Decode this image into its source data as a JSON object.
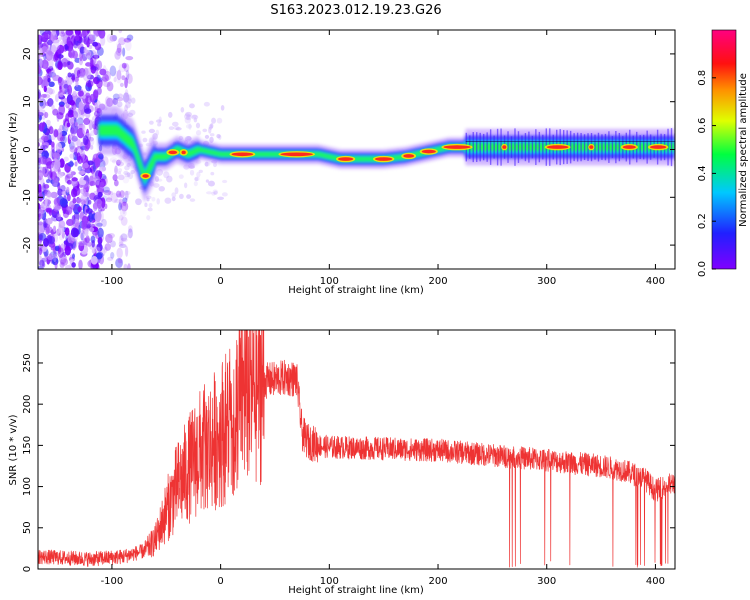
{
  "title": "S163.2023.012.19.23.G26",
  "colors": {
    "snr_line": "#ee3333"
  },
  "chart_data": [
    {
      "type": "heatmap",
      "xlabel": "Height of straight line (km)",
      "ylabel": "Frequency (Hz)",
      "xlim": [
        -168,
        418
      ],
      "ylim": [
        -25,
        25
      ],
      "x_ticks": [
        -100,
        0,
        100,
        200,
        300,
        400
      ],
      "y_ticks": [
        -20,
        -10,
        0,
        10,
        20
      ],
      "colorbar": {
        "label": "Normalized spectral amplitude",
        "range": [
          0,
          1
        ],
        "ticks": [
          "0.0",
          "0.2",
          "0.4",
          "0.6",
          "0.8"
        ],
        "colormap": "rainbow (violet → blue → cyan → green → yellow → red → pink)"
      },
      "ridge_frequency": {
        "x": [
          -110,
          -95,
          -80,
          -70,
          -60,
          -50,
          -40,
          -30,
          -20,
          0,
          50,
          90,
          110,
          130,
          150,
          170,
          190,
          210,
          240,
          300,
          350,
          418
        ],
        "y": [
          4,
          4,
          1,
          -6,
          -1.5,
          -1.5,
          0,
          -1,
          0,
          -1,
          -1,
          -1,
          -2,
          -2,
          -2,
          -1.5,
          -0.5,
          0.5,
          0.5,
          0.5,
          0.5,
          0.5
        ]
      }
    },
    {
      "type": "line",
      "xlabel": "Height of straight line (km)",
      "ylabel": "SNR (10 * v/v)",
      "xlim": [
        -168,
        418
      ],
      "ylim": [
        0,
        290
      ],
      "x_ticks": [
        -100,
        0,
        100,
        200,
        300,
        400
      ],
      "y_ticks": [
        0,
        50,
        100,
        150,
        200,
        250
      ],
      "series": [
        {
          "x": [
            -168,
            -120,
            -90,
            -70,
            -60,
            -50,
            -40,
            -30,
            -20,
            -10,
            0,
            10,
            20,
            40,
            60,
            70,
            75,
            80,
            90,
            100,
            150,
            200,
            250,
            300,
            350,
            370,
            380,
            390,
            400,
            418
          ],
          "y": [
            15,
            12,
            15,
            22,
            35,
            70,
            100,
            120,
            140,
            150,
            165,
            180,
            215,
            228,
            232,
            230,
            165,
            155,
            150,
            148,
            146,
            144,
            138,
            132,
            125,
            120,
            115,
            110,
            95,
            105
          ]
        }
      ]
    }
  ]
}
